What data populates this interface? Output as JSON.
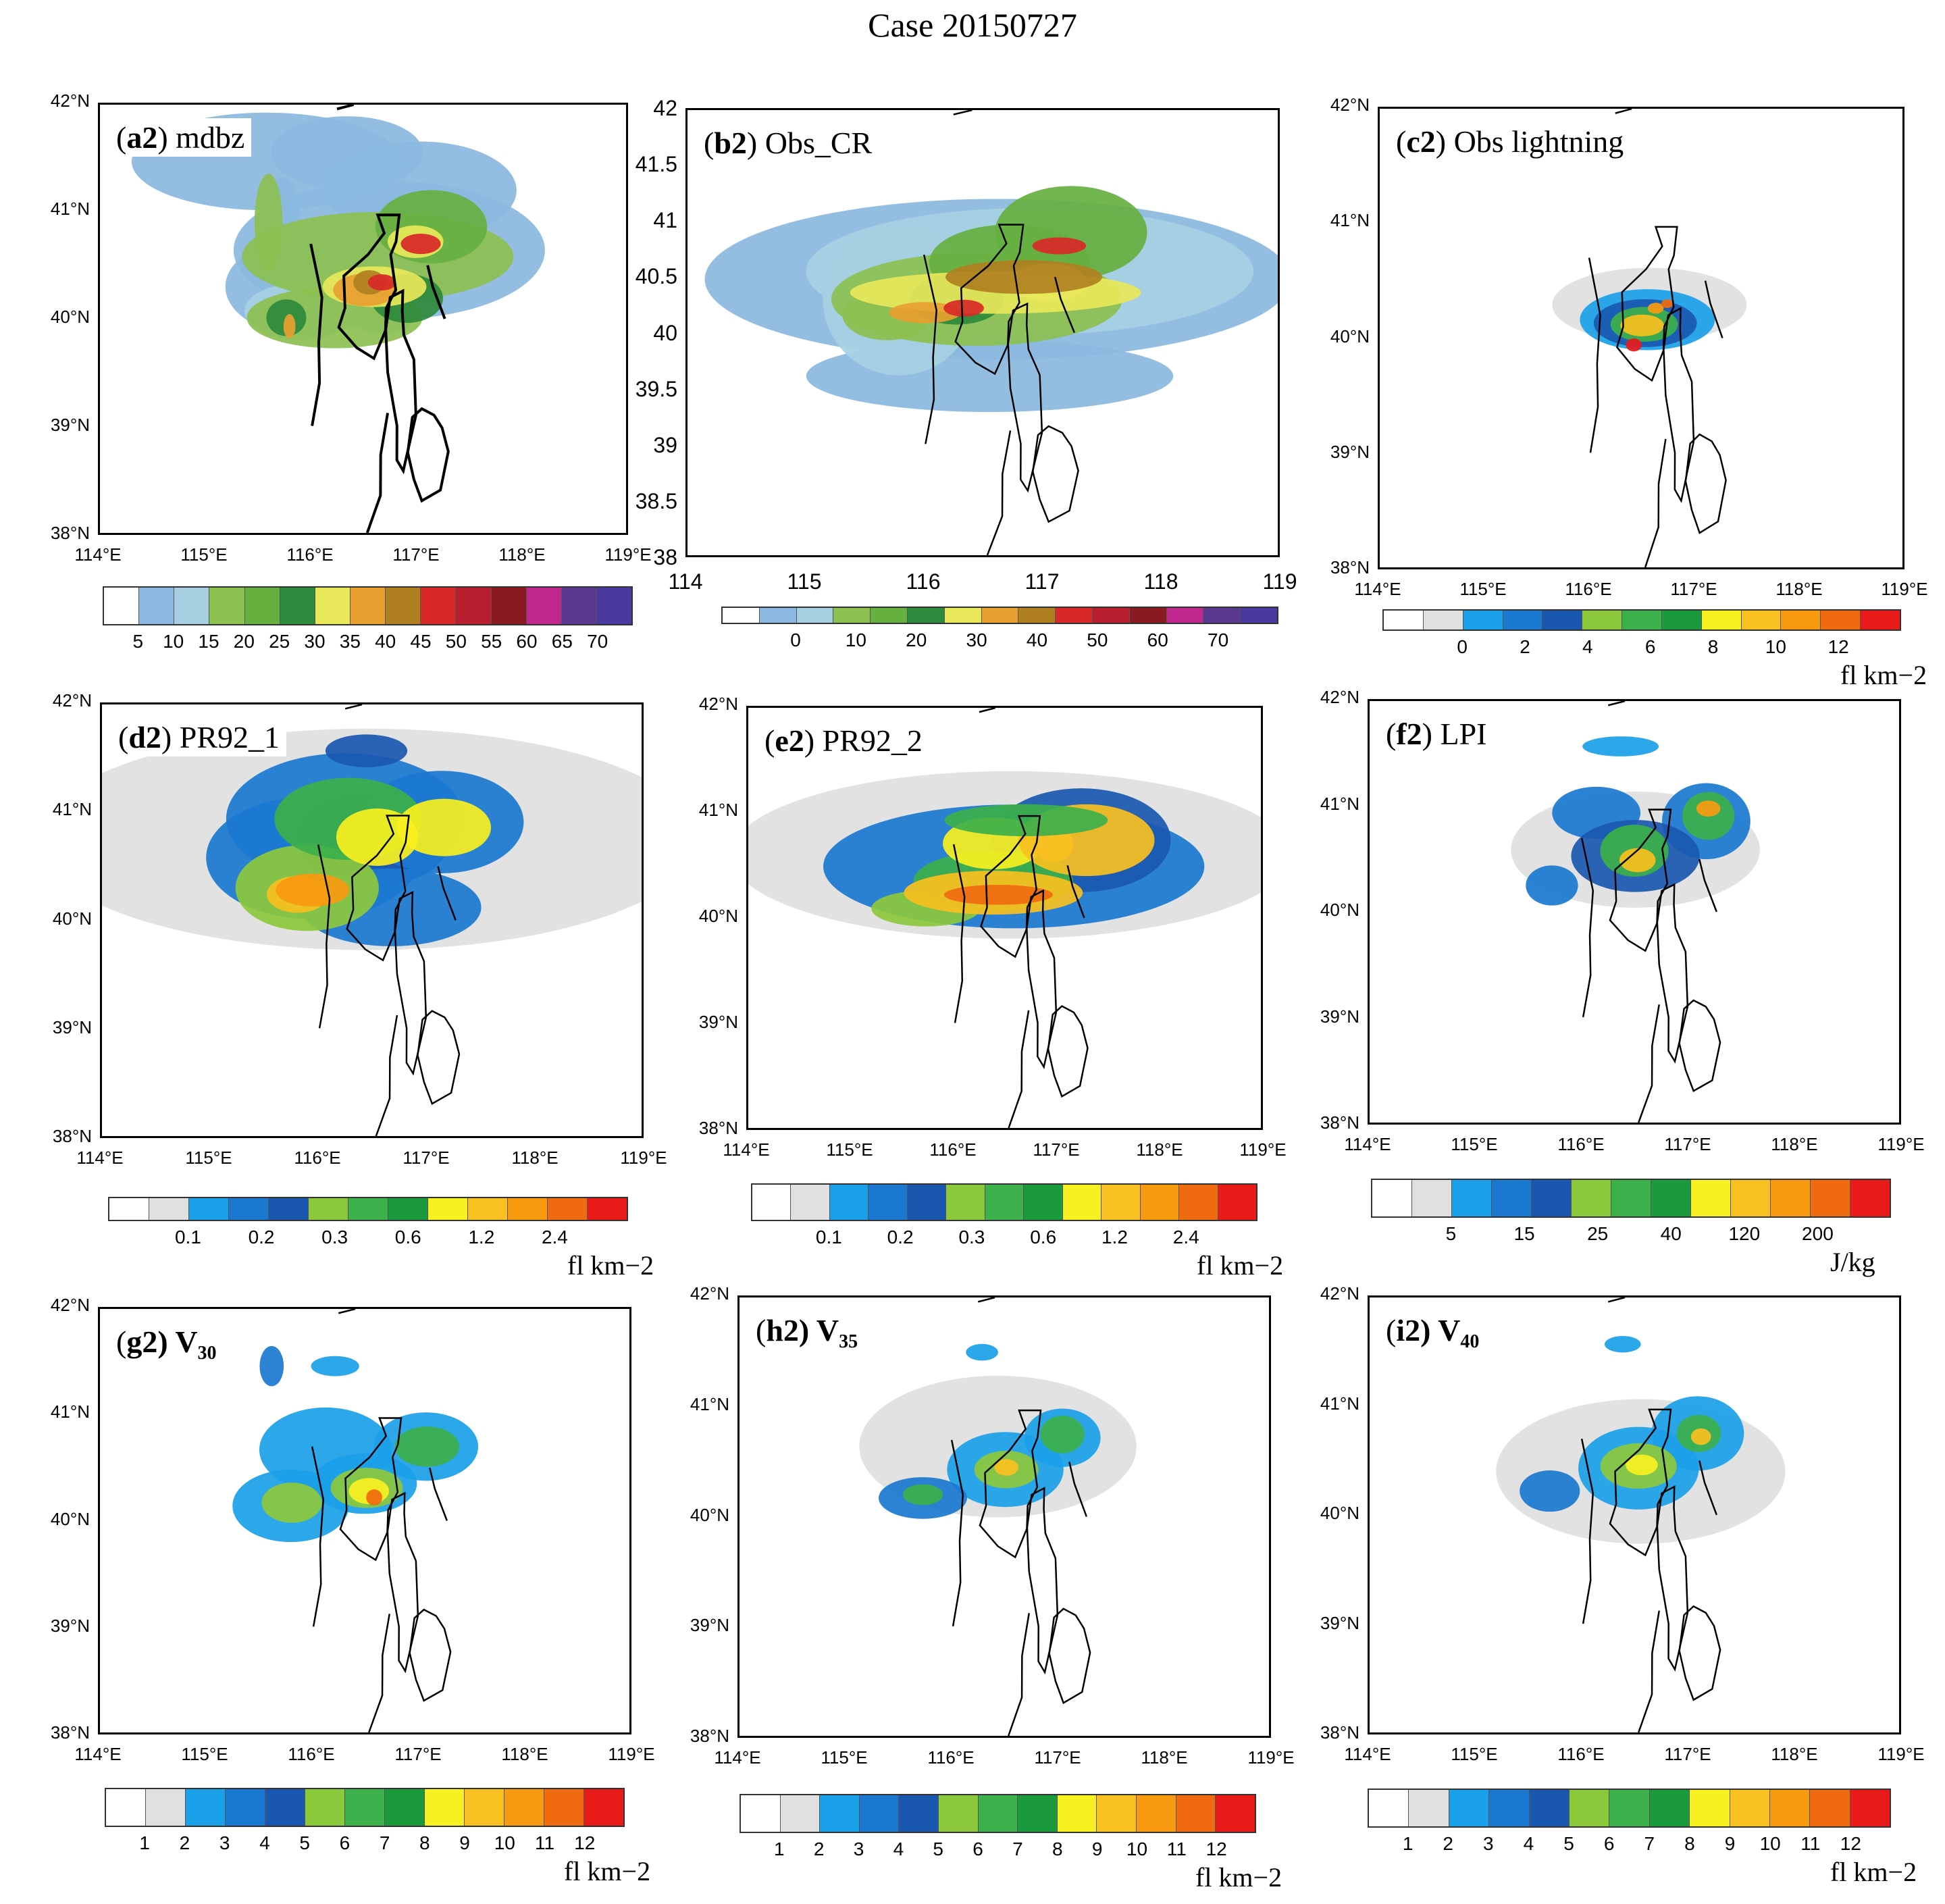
{
  "figure_title": "Case 20150727",
  "palettes": {
    "dbz": [
      "#ffffff",
      "#8ab8e0",
      "#a6d0e2",
      "#8cc050",
      "#66b040",
      "#2e8a3c",
      "#e8e85a",
      "#e8a030",
      "#b08020",
      "#d82828",
      "#b81e2e",
      "#8a1a20",
      "#c02890",
      "#5a3a90",
      "#4a3aa0"
    ],
    "cr": [
      "#ffffff",
      "#8ab8e0",
      "#a6d0e2",
      "#8cc050",
      "#66b040",
      "#2e8a3c",
      "#e8e85a",
      "#e8a030",
      "#b08020",
      "#d82828",
      "#b81e2e",
      "#8a1a20",
      "#c02890",
      "#5a3a90",
      "#4a3aa0"
    ],
    "light": [
      "#ffffff",
      "#e0e0e0",
      "#1aa0e8",
      "#1a78d0",
      "#1a58b0",
      "#8cc83c",
      "#3cb04a",
      "#1a9a3c",
      "#f8f020",
      "#f8c020",
      "#f89a10",
      "#f06a10",
      "#e81a1a"
    ]
  },
  "regions": {
    "beijing": [
      [
        -69.2,
        40.4
      ],
      [
        -32.4,
        40.6
      ],
      [
        -7.6,
        40.8
      ],
      [
        -17.6,
        40.97
      ],
      [
        15.2,
        40.97
      ],
      [
        10.3,
        40.72
      ],
      [
        2.2,
        40.6
      ],
      [
        9.9,
        40.27
      ],
      [
        -4.6,
        40.1
      ],
      [
        -5.8,
        39.89
      ],
      [
        -23.4,
        39.63
      ],
      [
        -49.6,
        39.73
      ],
      [
        -76.9,
        39.92
      ],
      [
        -67.4,
        40.1
      ]
    ],
    "tianjin": [
      [
        1.4,
        40.2
      ],
      [
        20.6,
        40.26
      ],
      [
        19.8,
        40.07
      ],
      [
        22.2,
        39.85
      ],
      [
        37.6,
        39.62
      ],
      [
        40.6,
        39.1
      ],
      [
        21.4,
        38.58
      ],
      [
        11.6,
        38.68
      ],
      [
        11.8,
        39.0
      ],
      [
        -2.4,
        39.5
      ],
      [
        -5.4,
        39.9
      ]
    ],
    "bay": [
      [
        35.2,
        39.08
      ],
      [
        49.6,
        39.16
      ],
      [
        68.2,
        39.1
      ],
      [
        80.6,
        38.98
      ],
      [
        89.9,
        38.76
      ],
      [
        77.9,
        38.4
      ],
      [
        49.6,
        38.3
      ],
      [
        37.6,
        38.5
      ],
      [
        28.2,
        38.75
      ]
    ],
    "hebei_west": [
      [
        -119.6,
        40.7
      ],
      [
        -102.6,
        40.2
      ],
      [
        -107.4,
        39.78
      ],
      [
        -106.2,
        39.4
      ],
      [
        -117.6,
        39.0
      ]
    ],
    "hebei_south": [
      [
        -33.6,
        38.0
      ],
      [
        -13.4,
        38.35
      ],
      [
        -13.1,
        38.73
      ],
      [
        -2.4,
        39.12
      ]
    ],
    "hebei_north": [
      [
        -79.6,
        41.96
      ],
      [
        -54.4,
        42.0
      ]
    ],
    "hebei_east": [
      [
        58.4,
        40.5
      ],
      [
        66.2,
        40.3
      ],
      [
        84.6,
        40.0
      ]
    ]
  },
  "panels": [
    {
      "id": "a2",
      "letter": "a2",
      "rest": ") mdbz",
      "y_ticks": [
        "42°N",
        "41°N",
        "40°N",
        "39°N",
        "38°N"
      ],
      "x_ticks": [
        "114°E",
        "115°E",
        "116°E",
        "117°E",
        "118°E",
        "119°E"
      ],
      "colorbar": {
        "palette": "dbz",
        "labels": [
          "5",
          "10",
          "15",
          "20",
          "25",
          "30",
          "35",
          "40",
          "45",
          "50",
          "55",
          "60",
          "65",
          "70"
        ],
        "unit": ""
      },
      "blobs": [
        [
          -160.6,
          40.98,
          -12.8,
          28.8,
          1
        ],
        [
          -187.2,
          41.47,
          -108,
          38.4,
          1
        ],
        [
          -64,
          41.55,
          -60.8,
          28.8,
          1
        ],
        [
          48,
          41.2,
          -76.8,
          38.4,
          1
        ],
        [
          0,
          40.64,
          -124.8,
          54.4,
          1
        ],
        [
          -128,
          40.3,
          -64,
          38.4,
          1
        ],
        [
          -17.6,
          40.3,
          -30.4,
          24,
          1
        ],
        [
          -135.4,
          40.07,
          -44.8,
          22.4,
          2
        ],
        [
          -124.8,
          40.01,
          -16,
          9.6,
          2
        ],
        [
          -11.2,
          40.05,
          -27.2,
          16,
          2
        ],
        [
          -184,
          40.9,
          -11.2,
          38.4,
          3
        ],
        [
          -83.2,
          40.01,
          -70.4,
          24,
          3
        ],
        [
          -17.6,
          40.58,
          -108.8,
          35.2,
          3
        ],
        [
          64,
          40.86,
          -44.8,
          28.8,
          4
        ],
        [
          27.2,
          40.19,
          -28.8,
          19.2,
          5
        ],
        [
          -156.8,
          40.01,
          -16,
          14.4,
          5
        ],
        [
          -22.4,
          40.3,
          -41.6,
          16,
          6
        ],
        [
          40,
          40.72,
          -22.4,
          12.8,
          6
        ],
        [
          -36.8,
          40.27,
          -25.6,
          12.8,
          7
        ],
        [
          -152,
          39.93,
          -4.8,
          9.6,
          7
        ],
        [
          -30.4,
          40.34,
          -12.8,
          9.6,
          8
        ],
        [
          -11.2,
          40.34,
          -11.2,
          6.4,
          9
        ],
        [
          48,
          40.7,
          -16,
          8,
          9
        ]
      ]
    },
    {
      "id": "b2",
      "letter": "b2",
      "rest": ") Obs_CR",
      "y_ticks": [
        "42",
        "41.5",
        "41",
        "40.5",
        "40",
        "39.5",
        "39",
        "38.5",
        "38"
      ],
      "x_ticks": [
        "114",
        "115",
        "116",
        "117",
        "118",
        "119"
      ],
      "colorbar": {
        "palette": "cr",
        "labels": [
          "0",
          "10",
          "20",
          "30",
          "40",
          "50",
          "60",
          "70"
        ],
        "unit": ""
      },
      "blobs": [
        [
          -19.2,
          40.48,
          -209.6,
          60.8,
          1
        ],
        [
          -30.4,
          39.61,
          -131.2,
          27.2,
          1
        ],
        [
          -153.6,
          40.3,
          -54.4,
          57.6,
          2
        ],
        [
          24,
          40.55,
          -160,
          48,
          2
        ],
        [
          -169.6,
          40.16,
          -32,
          19.2,
          3
        ],
        [
          -48,
          40.3,
          -104,
          35.2,
          3
        ],
        [
          -3.2,
          40.63,
          -57.6,
          28.8,
          4
        ],
        [
          80,
          40.9,
          -54.4,
          35.2,
          4
        ],
        [
          -75.2,
          40.3,
          -33.6,
          19.2,
          5
        ],
        [
          -22.4,
          40.36,
          -104,
          16,
          6
        ],
        [
          48,
          40.45,
          -28.8,
          14.4,
          6
        ],
        [
          -118.4,
          40.18,
          -25.6,
          8,
          7
        ],
        [
          16,
          40.5,
          -56,
          12.8,
          8
        ],
        [
          -65.6,
          40.22,
          -14.4,
          6.4,
          9
        ],
        [
          64,
          40.78,
          -19.2,
          6.4,
          9
        ]
      ]
    },
    {
      "id": "c2",
      "letter": "c2",
      "rest": ") Obs lightning",
      "y_ticks": [
        "42°N",
        "41°N",
        "40°N",
        "39°N",
        "38°N"
      ],
      "x_ticks": [
        "114°E",
        "115°E",
        "116°E",
        "117°E",
        "118°E",
        "119°E"
      ],
      "colorbar": {
        "palette": "light",
        "labels": [
          "0",
          "2",
          "4",
          "6",
          "8",
          "10",
          "12"
        ],
        "unit": "fl km−2"
      },
      "blobs": [
        [
          -27.2,
          40.29,
          -78.4,
          27.2,
          1
        ],
        [
          -30.4,
          40.16,
          -54.4,
          22.4,
          2
        ],
        [
          -33.6,
          40.13,
          -41.6,
          17.6,
          4
        ],
        [
          -35.2,
          40.12,
          -27.2,
          12.8,
          6
        ],
        [
          -38.4,
          40.11,
          -17.6,
          8,
          9
        ],
        [
          -51.2,
          39.94,
          -6.4,
          4.8,
          12
        ],
        [
          -17.6,
          40.26,
          -6.4,
          4,
          10
        ],
        [
          0,
          40.3,
          -4.8,
          3.2,
          11
        ]
      ]
    },
    {
      "id": "d2",
      "letter": "d2",
      "rest": ") PR92_1",
      "y_ticks": [
        "42°N",
        "41°N",
        "40°N",
        "39°N",
        "38°N"
      ],
      "x_ticks": [
        "114°E",
        "115°E",
        "116°E",
        "117°E",
        "118°E",
        "119°E"
      ],
      "colorbar": {
        "palette": "light",
        "labels": [
          "0.1",
          "0.2",
          "0.3",
          "0.6",
          "1.2",
          "2.4"
        ],
        "unit": "fl km−2"
      },
      "blobs": [
        [
          -46.4,
          40.75,
          -259.2,
          86.4,
          1
        ],
        [
          -128,
          40.58,
          -83.2,
          48,
          3
        ],
        [
          -80,
          40.94,
          -92.8,
          51.2,
          3
        ],
        [
          -36.8,
          40.75,
          -59.2,
          36.8,
          4
        ],
        [
          64,
          40.91,
          -64,
          40,
          3
        ],
        [
          -11.2,
          40.12,
          -70.4,
          30.4,
          3
        ],
        [
          -136,
          40.3,
          -56,
          33.6,
          5
        ],
        [
          -75.2,
          40.94,
          -57.6,
          32,
          6
        ],
        [
          -32,
          40.77,
          -32,
          22.4,
          8
        ],
        [
          67.2,
          40.86,
          -36.8,
          22.4,
          8
        ],
        [
          -150.4,
          40.24,
          -24,
          14.4,
          9
        ],
        [
          -128,
          40.28,
          -28.8,
          12.8,
          10
        ],
        [
          -48,
          41.57,
          -32,
          12.8,
          4
        ]
      ]
    },
    {
      "id": "e2",
      "letter": "e2",
      "rest": ") PR92_2",
      "y_ticks": [
        "42°N",
        "41°N",
        "40°N",
        "39°N",
        "38°N"
      ],
      "x_ticks": [
        "114°E",
        "115°E",
        "116°E",
        "117°E",
        "118°E",
        "119°E"
      ],
      "colorbar": {
        "palette": "light",
        "labels": [
          "0.1",
          "0.2",
          "0.3",
          "0.6",
          "1.2",
          "2.4"
        ],
        "unit": "fl km−2"
      },
      "blobs": [
        [
          -30.4,
          40.6,
          -230.4,
          67.2,
          1
        ],
        [
          -25.6,
          40.49,
          -156.8,
          49.6,
          3
        ],
        [
          80,
          40.74,
          -73.6,
          41.6,
          4
        ],
        [
          -163.2,
          40.09,
          -44.8,
          14.4,
          5
        ],
        [
          -57.6,
          40.35,
          -65.6,
          24,
          6
        ],
        [
          -57.6,
          40.71,
          -41.6,
          20.8,
          8
        ],
        [
          88,
          40.74,
          -56,
          28.8,
          9
        ],
        [
          -57.6,
          40.24,
          -73.6,
          17.6,
          9
        ],
        [
          -49.6,
          40.22,
          -44.8,
          8,
          11
        ],
        [
          36.8,
          40.7,
          -16,
          14.4,
          9
        ],
        [
          -6.4,
          40.93,
          -67.2,
          12.8,
          6
        ]
      ]
    },
    {
      "id": "f2",
      "letter": "f2",
      "rest": ") LPI",
      "y_ticks": [
        "42°N",
        "41°N",
        "40°N",
        "39°N",
        "38°N"
      ],
      "x_ticks": [
        "114°E",
        "115°E",
        "116°E",
        "117°E",
        "118°E",
        "119°E"
      ],
      "colorbar": {
        "palette": "light",
        "labels": [
          "5",
          "15",
          "25",
          "40",
          "120",
          "200"
        ],
        "unit": "J/kg"
      },
      "blobs": [
        [
          -38.4,
          40.59,
          -99.2,
          46.4,
          1
        ],
        [
          68.8,
          40.86,
          -35.2,
          30.4,
          3
        ],
        [
          -97.6,
          40.94,
          -35.2,
          20.8,
          3
        ],
        [
          -38.4,
          40.53,
          -51.2,
          28.8,
          4
        ],
        [
          -40,
          40.58,
          -27.2,
          20.8,
          6
        ],
        [
          72,
          40.91,
          -20.8,
          19.2,
          6
        ],
        [
          -35.2,
          40.49,
          -14.4,
          9.6,
          9
        ],
        [
          72,
          40.98,
          -9.6,
          6.4,
          10
        ],
        [
          -164.8,
          40.25,
          -20.8,
          16,
          3
        ],
        [
          -60.8,
          41.57,
          -30.4,
          8,
          2
        ]
      ]
    },
    {
      "id": "g2",
      "letter": "g2",
      "rest": ") V",
      "sub": "30",
      "y_ticks": [
        "42°N",
        "41°N",
        "40°N",
        "39°N",
        "38°N"
      ],
      "x_ticks": [
        "114°E",
        "115°E",
        "116°E",
        "117°E",
        "118°E",
        "119°E"
      ],
      "colorbar": {
        "palette": "light",
        "labels": [
          "1",
          "2",
          "3",
          "4",
          "5",
          "6",
          "7",
          "8",
          "9",
          "10",
          "11",
          "12"
        ],
        "unit": "fl km−2"
      },
      "blobs": [
        [
          -152,
          40.14,
          -46.4,
          28.8,
          2
        ],
        [
          -99.2,
          40.67,
          -52.8,
          33.6,
          2
        ],
        [
          -40,
          40.35,
          -41.6,
          24,
          2
        ],
        [
          52.8,
          40.7,
          -41.6,
          27.2,
          2
        ],
        [
          -84.8,
          41.46,
          -19.2,
          8,
          2
        ],
        [
          -36.8,
          40.31,
          -28.8,
          16,
          5
        ],
        [
          -150.4,
          40.17,
          -24,
          16,
          5
        ],
        [
          54.4,
          40.7,
          -25.6,
          16,
          6
        ],
        [
          -33.6,
          40.28,
          -16,
          10.4,
          8
        ],
        [
          -25.6,
          40.22,
          -6.4,
          6.4,
          11
        ],
        [
          -180.8,
          41.46,
          -9.6,
          16,
          3
        ]
      ]
    },
    {
      "id": "h2",
      "letter": "h2",
      "rest": ") V",
      "sub": "35",
      "y_ticks": [
        "42°N",
        "41°N",
        "40°N",
        "39°N",
        "38°N"
      ],
      "x_ticks": [
        "114°E",
        "115°E",
        "116°E",
        "117°E",
        "118°E",
        "119°E"
      ],
      "colorbar": {
        "palette": "light",
        "labels": [
          "1",
          "2",
          "3",
          "4",
          "5",
          "6",
          "7",
          "8",
          "9",
          "10",
          "11",
          "12"
        ],
        "unit": "fl km−2"
      },
      "blobs": [
        [
          -49.6,
          40.64,
          -110.4,
          54.4,
          1
        ],
        [
          -38.4,
          40.43,
          -46.4,
          28.8,
          2
        ],
        [
          48,
          40.72,
          -30.4,
          22.4,
          2
        ],
        [
          -163.2,
          40.17,
          -35.2,
          16,
          3
        ],
        [
          -36.8,
          40.43,
          -25.6,
          14.4,
          5
        ],
        [
          48,
          40.75,
          -17.6,
          14.4,
          6
        ],
        [
          -163.2,
          40.2,
          -16,
          8,
          6
        ],
        [
          -36.8,
          40.45,
          -9.6,
          6.4,
          9
        ],
        [
          -73.6,
          41.5,
          -12.8,
          6.4,
          2
        ]
      ]
    },
    {
      "id": "i2",
      "letter": "i2",
      "rest": ") V",
      "sub": "40",
      "y_ticks": [
        "42°N",
        "41°N",
        "40°N",
        "39°N",
        "38°N"
      ],
      "x_ticks": [
        "114°E",
        "115°E",
        "116°E",
        "117°E",
        "118°E",
        "119°E"
      ],
      "colorbar": {
        "palette": "light",
        "labels": [
          "1",
          "2",
          "3",
          "4",
          "5",
          "6",
          "7",
          "8",
          "9",
          "10",
          "11",
          "12"
        ],
        "unit": "fl km−2"
      },
      "blobs": [
        [
          -30.4,
          40.4,
          -115.2,
          56,
          1
        ],
        [
          -33.6,
          40.43,
          -48,
          32,
          2
        ],
        [
          56,
          40.75,
          -36.8,
          28.8,
          2
        ],
        [
          -168,
          40.22,
          -24,
          16,
          3
        ],
        [
          -33.6,
          40.45,
          -30.4,
          17.6,
          5
        ],
        [
          57.6,
          40.75,
          -17.6,
          14.4,
          6
        ],
        [
          -28.8,
          40.46,
          -12.8,
          8,
          8
        ],
        [
          60.8,
          40.72,
          -8,
          6.4,
          9
        ],
        [
          -57.6,
          41.57,
          -14.4,
          6.4,
          2
        ]
      ]
    }
  ]
}
